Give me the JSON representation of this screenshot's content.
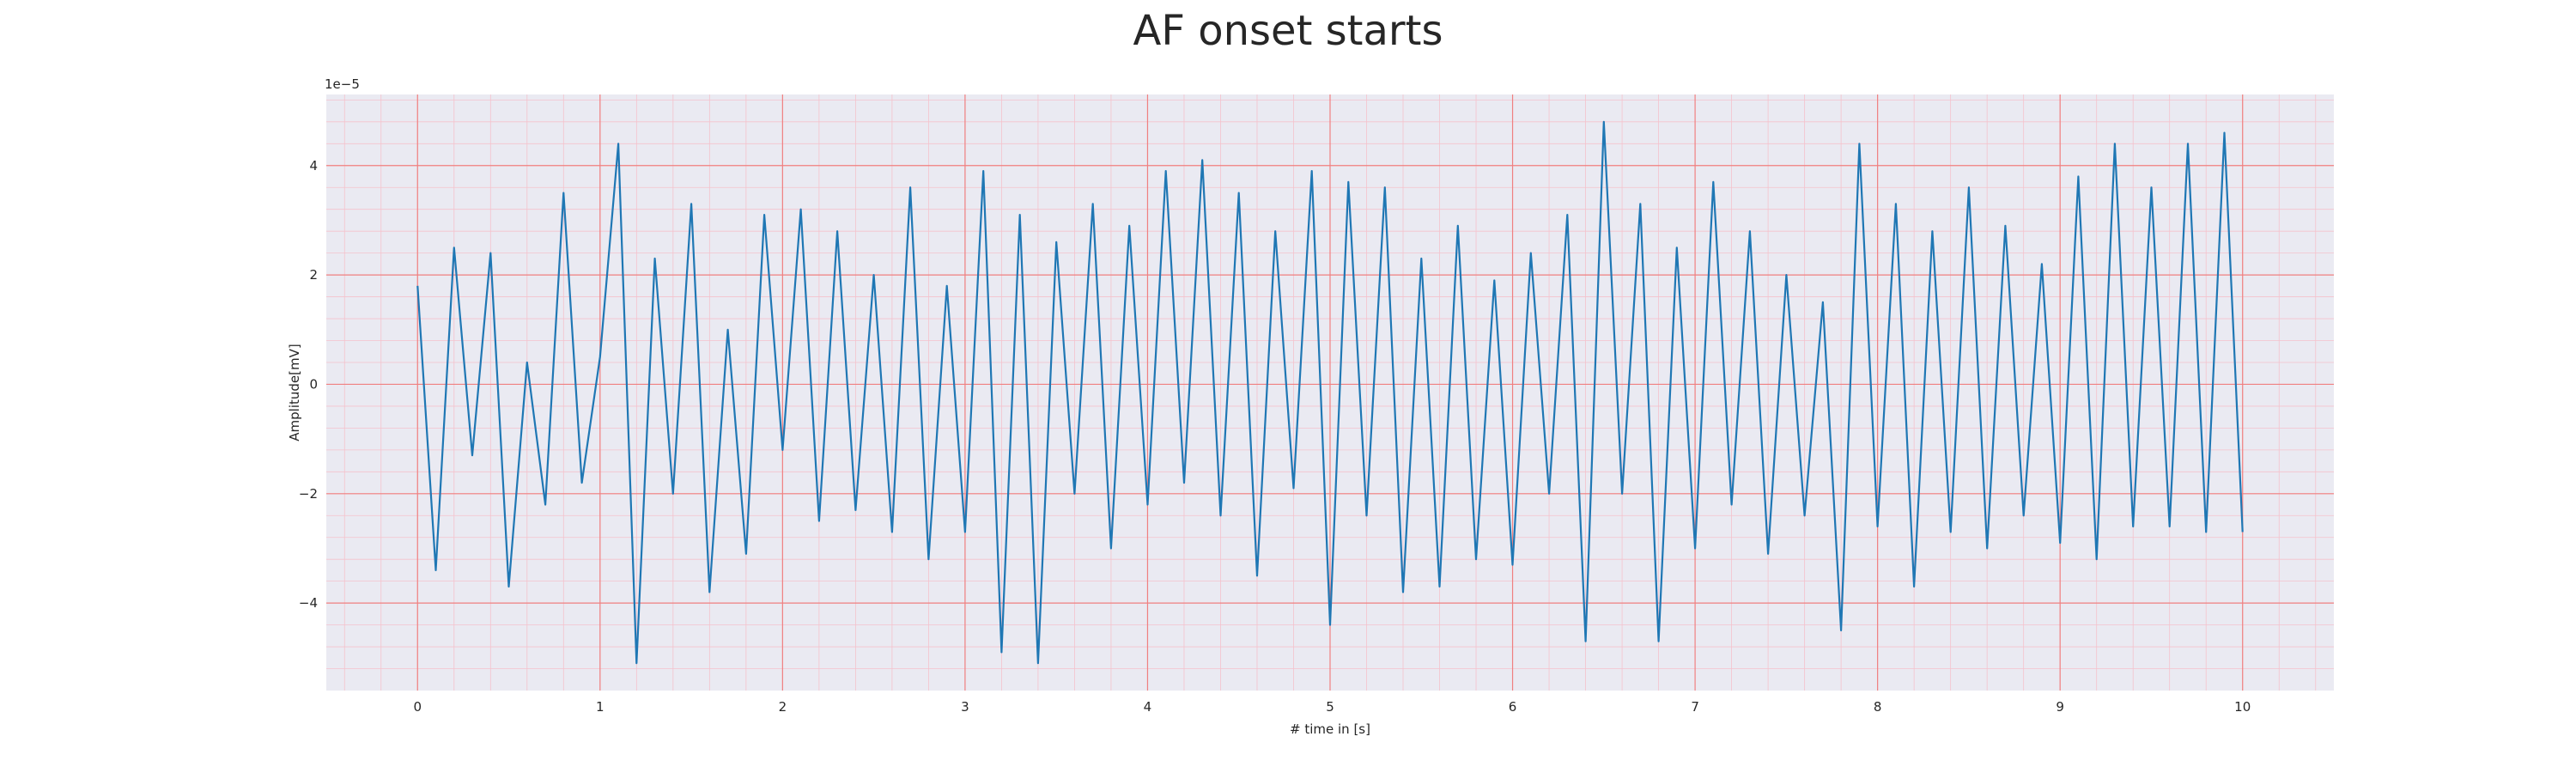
{
  "chart_data": {
    "type": "line",
    "title": "AF onset starts",
    "xlabel": "# time in [s]",
    "ylabel": "Amplitude[mV]",
    "y_offset_label": "1e−5",
    "xlim": [
      -0.5,
      10.5
    ],
    "ylim": [
      -5.6,
      5.3
    ],
    "xticks": [
      0,
      1,
      2,
      3,
      4,
      5,
      6,
      7,
      8,
      9,
      10
    ],
    "yticks": [
      -4,
      -2,
      0,
      2,
      4
    ],
    "ytick_labels": [
      "−4",
      "−2",
      "0",
      "2",
      "4"
    ],
    "grid": true,
    "minor_grid": true,
    "colors": {
      "line": "#1f77b4",
      "background": "#eaeaf2",
      "major_grid": "#f08080",
      "minor_grid": "#f5c2cc"
    },
    "series": [
      {
        "x": [
          0.0,
          0.1,
          0.2,
          0.3,
          0.4,
          0.5,
          0.6,
          0.7,
          0.8,
          0.9,
          1.0,
          1.1,
          1.2,
          1.3,
          1.4,
          1.5,
          1.6,
          1.7,
          1.8,
          1.9,
          2.0,
          2.1,
          2.2,
          2.3,
          2.4,
          2.5,
          2.6,
          2.7,
          2.8,
          2.9,
          3.0,
          3.1,
          3.2,
          3.3,
          3.4,
          3.5,
          3.6,
          3.7,
          3.8,
          3.9,
          4.0,
          4.1,
          4.2,
          4.3,
          4.4,
          4.5,
          4.6,
          4.7,
          4.8,
          4.9,
          5.0,
          5.1,
          5.2,
          5.3,
          5.4,
          5.5,
          5.6,
          5.7,
          5.8,
          5.9,
          6.0,
          6.1,
          6.2,
          6.3,
          6.4,
          6.5,
          6.6,
          6.7,
          6.8,
          6.9,
          7.0,
          7.1,
          7.2,
          7.3,
          7.4,
          7.5,
          7.6,
          7.7,
          7.8,
          7.9,
          8.0,
          8.1,
          8.2,
          8.3,
          8.4,
          8.5,
          8.6,
          8.7,
          8.8,
          8.9,
          9.0,
          9.1,
          9.2,
          9.3,
          9.4,
          9.5,
          9.6,
          9.7,
          9.8,
          9.9,
          10.0
        ],
        "values": [
          1.8,
          -3.4,
          2.5,
          -1.3,
          2.4,
          -3.7,
          0.4,
          -2.2,
          3.5,
          -1.8,
          0.5,
          4.4,
          -5.1,
          2.3,
          -2.0,
          3.3,
          -3.8,
          1.0,
          -3.1,
          3.1,
          -1.2,
          3.2,
          -2.5,
          2.8,
          -2.3,
          2.0,
          -2.7,
          3.6,
          -3.2,
          1.8,
          -2.7,
          3.9,
          -4.9,
          3.1,
          -5.1,
          2.6,
          -2.0,
          3.3,
          -3.0,
          2.9,
          -2.2,
          3.9,
          -1.8,
          4.1,
          -2.4,
          3.5,
          -3.5,
          2.8,
          -1.9,
          3.9,
          -4.4,
          3.7,
          -2.4,
          3.6,
          -3.8,
          2.3,
          -3.7,
          2.9,
          -3.2,
          1.9,
          -3.3,
          2.4,
          -2.0,
          3.1,
          -4.7,
          4.8,
          -2.0,
          3.3,
          -4.7,
          2.5,
          -3.0,
          3.7,
          -2.2,
          2.8,
          -3.1,
          2.0,
          -2.4,
          1.5,
          -4.5,
          4.4,
          -2.6,
          3.3,
          -3.7,
          2.8,
          -2.7,
          3.6,
          -3.0,
          2.9,
          -2.4,
          2.2,
          -2.9,
          3.8,
          -3.2,
          4.4,
          -2.6,
          3.6,
          -2.6,
          4.4,
          -2.7,
          4.6,
          -2.7
        ]
      }
    ]
  }
}
